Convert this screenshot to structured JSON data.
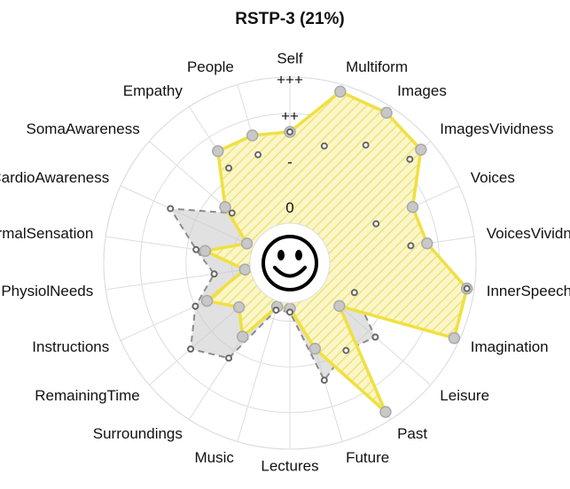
{
  "chart_data": {
    "type": "radar",
    "title": "RSTP-3 (21%)",
    "categories": [
      "Self",
      "Multiform",
      "Images",
      "ImagesVividness",
      "Voices",
      "VoicesVividness",
      "InnerSpeech",
      "Imagination",
      "Leisure",
      "Past",
      "Future",
      "Lectures",
      "Music",
      "Surroundings",
      "RemainingTime",
      "Instructions",
      "PhysiolNeeds",
      "ThermalSensation",
      "CardioAwareness",
      "SomaAwareness",
      "Empathy",
      "People"
    ],
    "ylim": [
      0,
      8
    ],
    "yticks": [
      {
        "value": 1,
        "label": "0"
      },
      {
        "value": 3.5,
        "label": "-"
      },
      {
        "value": 6,
        "label": "++"
      },
      {
        "value": 8,
        "label": "+++"
      }
    ],
    "series": [
      {
        "color": "#f0e040",
        "values": [
          5.0,
          7.6,
          7.6,
          7.3,
          5.2,
          5.4,
          7.6,
          7.7,
          1.4,
          7.5,
          2.7,
          0.3,
          0.3,
          2.6,
          1.5,
          2.8,
          0.3,
          2.5,
          0.4,
          2.5,
          5.1,
          5.1
        ]
      },
      {
        "color": "#8c8c8c",
        "values": [
          5.0,
          4.5,
          5.5,
          6.5,
          3.0,
          4.5,
          7.6,
          1.7,
          4.0,
          3.5,
          4.5,
          0.5,
          0.5,
          4.0,
          5.0,
          3.5,
          2.0,
          3.0,
          5.0,
          2.0,
          4.0,
          4.0
        ]
      }
    ]
  }
}
